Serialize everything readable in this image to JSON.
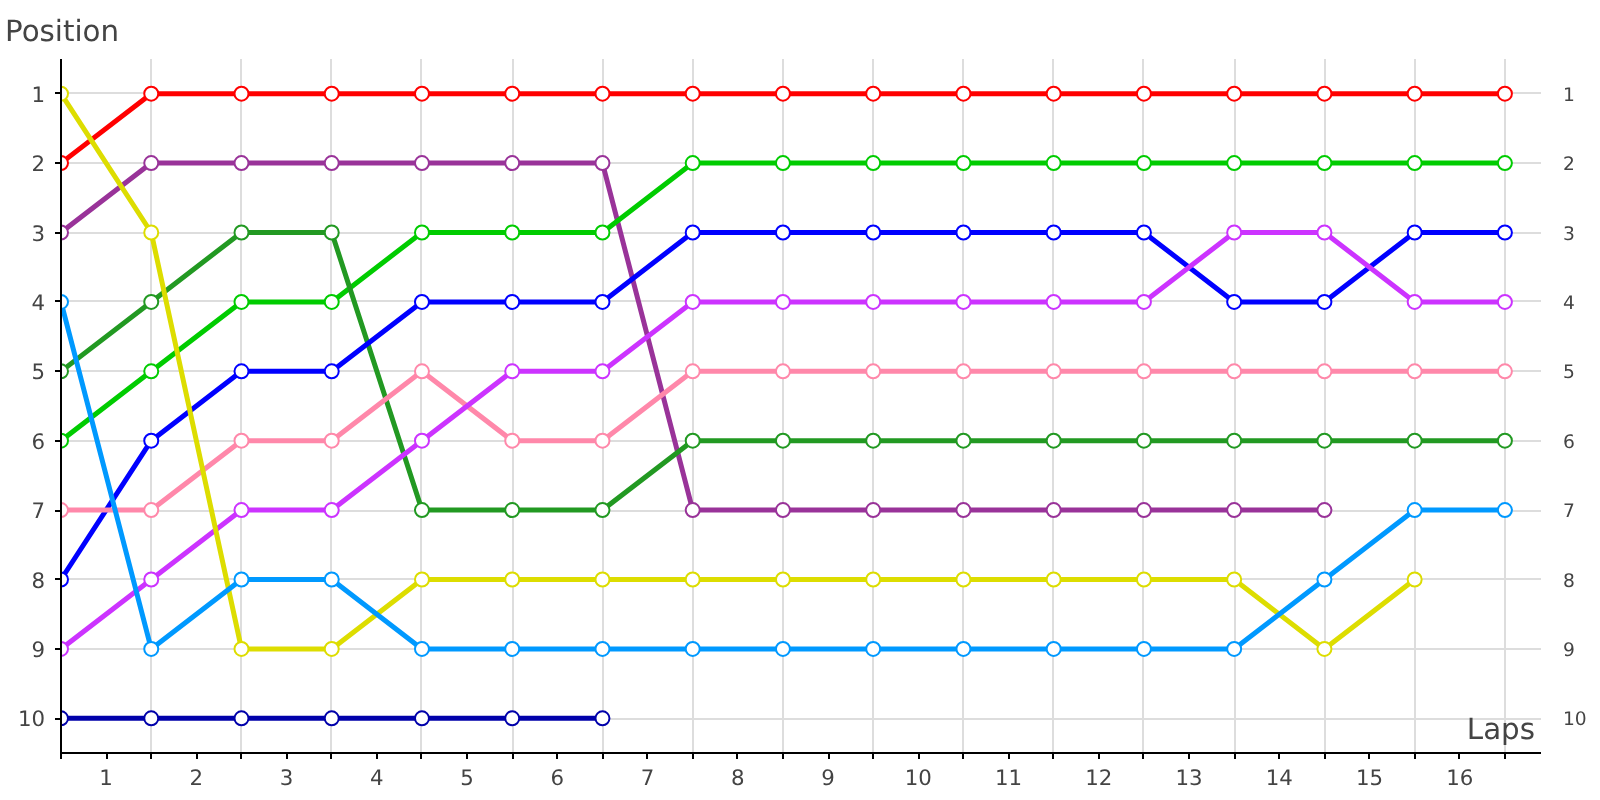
{
  "chart_data": {
    "type": "line",
    "xlabel": "Laps",
    "ylabel": "Position",
    "x": [
      0,
      1,
      2,
      3,
      4,
      5,
      6,
      7,
      8,
      9,
      10,
      11,
      12,
      13,
      14,
      15,
      16
    ],
    "series": [
      {
        "color": "#ff0000",
        "values": [
          2,
          1,
          1,
          1,
          1,
          1,
          1,
          1,
          1,
          1,
          1,
          1,
          1,
          1,
          1,
          1,
          1
        ]
      },
      {
        "color": "#993399",
        "values": [
          3,
          2,
          2,
          2,
          2,
          2,
          2,
          7,
          7,
          7,
          7,
          7,
          7,
          7,
          7,
          null,
          null
        ]
      },
      {
        "color": "#00cc00",
        "values": [
          6,
          5,
          4,
          4,
          3,
          3,
          3,
          2,
          2,
          2,
          2,
          2,
          2,
          2,
          2,
          2,
          2
        ]
      },
      {
        "color": "#229922",
        "values": [
          5,
          4,
          3,
          3,
          7,
          7,
          7,
          6,
          6,
          6,
          6,
          6,
          6,
          6,
          6,
          6,
          6
        ]
      },
      {
        "color": "#0000ff",
        "values": [
          8,
          6,
          5,
          5,
          4,
          4,
          4,
          3,
          3,
          3,
          3,
          3,
          3,
          4,
          4,
          3,
          3
        ]
      },
      {
        "color": "#ff88aa",
        "values": [
          7,
          7,
          6,
          6,
          5,
          6,
          6,
          5,
          5,
          5,
          5,
          5,
          5,
          5,
          5,
          5,
          5
        ]
      },
      {
        "color": "#cc33ff",
        "values": [
          9,
          8,
          7,
          7,
          6,
          5,
          5,
          4,
          4,
          4,
          4,
          4,
          4,
          3,
          3,
          4,
          4
        ]
      },
      {
        "color": "#dddd00",
        "values": [
          1,
          3,
          9,
          9,
          8,
          8,
          8,
          8,
          8,
          8,
          8,
          8,
          8,
          8,
          9,
          8,
          null
        ]
      },
      {
        "color": "#0099ff",
        "values": [
          4,
          9,
          8,
          8,
          9,
          9,
          9,
          9,
          9,
          9,
          9,
          9,
          9,
          9,
          8,
          7,
          7
        ]
      },
      {
        "color": "#0000aa",
        "values": [
          10,
          10,
          10,
          10,
          10,
          10,
          10,
          null,
          null,
          null,
          null,
          null,
          null,
          null,
          null,
          null,
          null
        ]
      }
    ],
    "xlim": [
      0,
      16.4
    ],
    "xticks": [
      {
        "value": 0,
        "label": null
      },
      {
        "value": 0.5,
        "label": "1"
      },
      {
        "value": 1,
        "label": null
      },
      {
        "value": 1.5,
        "label": "2"
      },
      {
        "value": 2,
        "label": null
      },
      {
        "value": 2.5,
        "label": "3"
      },
      {
        "value": 3,
        "label": null
      },
      {
        "value": 3.5,
        "label": "4"
      },
      {
        "value": 4,
        "label": null
      },
      {
        "value": 4.5,
        "label": "5"
      },
      {
        "value": 5,
        "label": null
      },
      {
        "value": 5.5,
        "label": "6"
      },
      {
        "value": 6,
        "label": null
      },
      {
        "value": 6.5,
        "label": "7"
      },
      {
        "value": 7,
        "label": null
      },
      {
        "value": 7.5,
        "label": "8"
      },
      {
        "value": 8,
        "label": null
      },
      {
        "value": 8.5,
        "label": "9"
      },
      {
        "value": 9,
        "label": null
      },
      {
        "value": 9.5,
        "label": "10"
      },
      {
        "value": 10,
        "label": null
      },
      {
        "value": 10.5,
        "label": "11"
      },
      {
        "value": 11,
        "label": null
      },
      {
        "value": 11.5,
        "label": "12"
      },
      {
        "value": 12,
        "label": null
      },
      {
        "value": 12.5,
        "label": "13"
      },
      {
        "value": 13,
        "label": null
      },
      {
        "value": 13.5,
        "label": "14"
      },
      {
        "value": 14,
        "label": null
      },
      {
        "value": 14.5,
        "label": "15"
      },
      {
        "value": 15,
        "label": null
      },
      {
        "value": 15.5,
        "label": "16"
      },
      {
        "value": 16,
        "label": null
      }
    ],
    "ylim": [
      10.5,
      0.5
    ],
    "yticks": [
      1,
      2,
      3,
      4,
      5,
      6,
      7,
      8,
      9,
      10
    ],
    "y2lim": [
      10.5,
      0.5
    ],
    "y2ticks": [
      1,
      2,
      3,
      4,
      5,
      6,
      7,
      8,
      9,
      10
    ],
    "grid": true,
    "marker": "circle",
    "line_style": "solid"
  }
}
